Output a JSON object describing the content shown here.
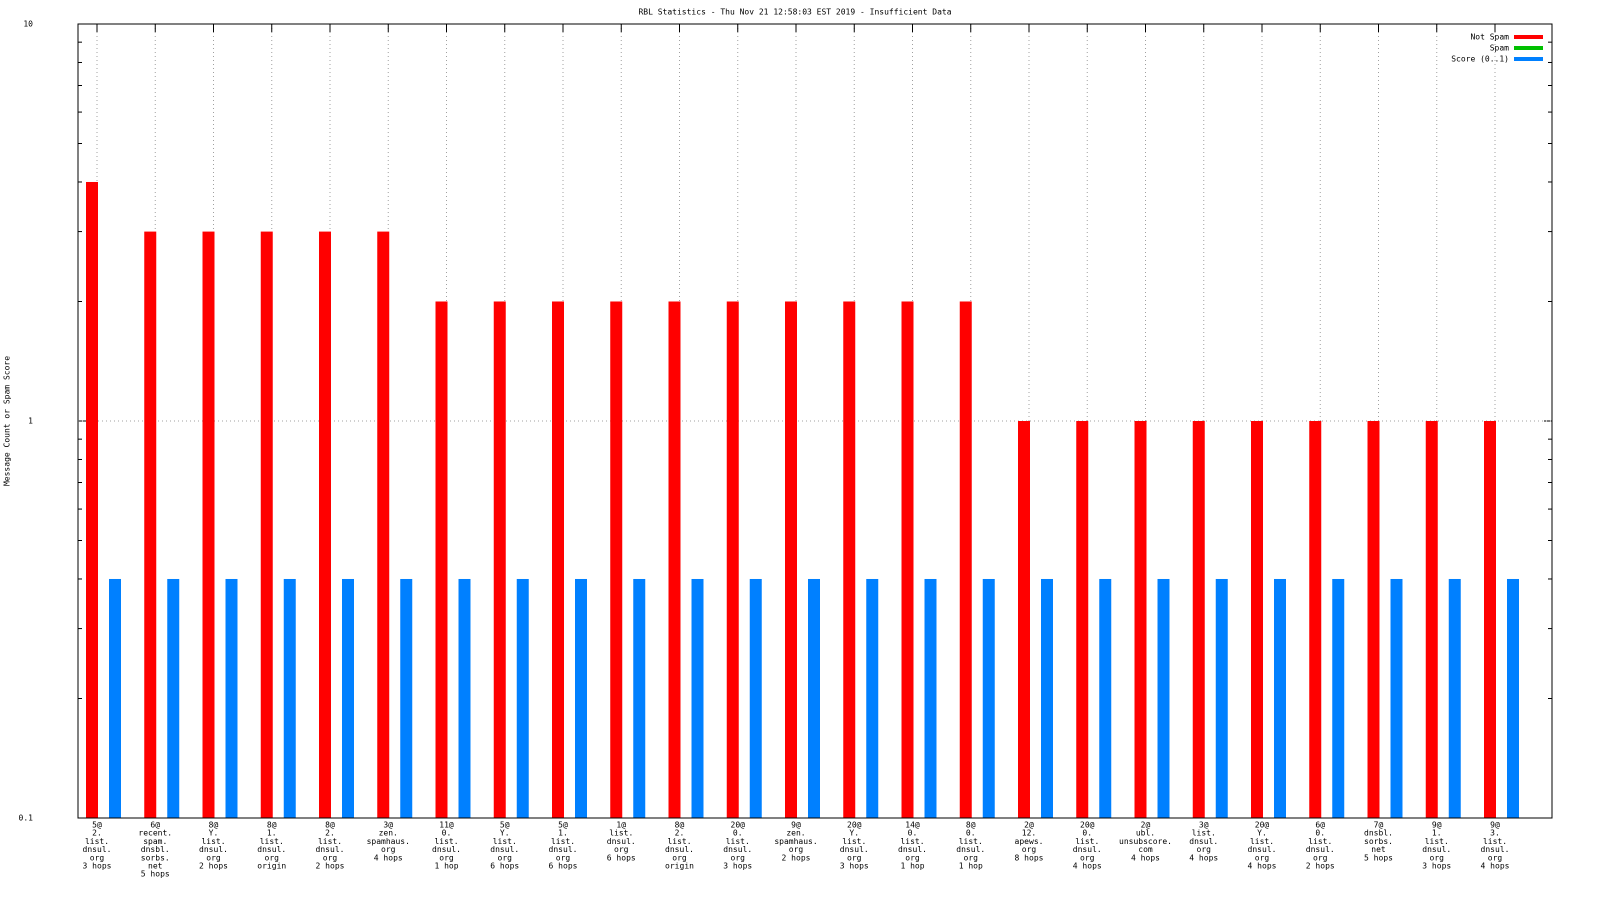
{
  "chart_data": {
    "type": "bar",
    "title": "RBL Statistics - Thu Nov 21 12:58:03 EST 2019 - Insufficient Data",
    "y_label": "Message Count or Spam Score",
    "log_y": true,
    "grid": true,
    "legend": "top-right",
    "ylim": [
      0.1,
      10
    ],
    "yticks": [
      0.1,
      1,
      10
    ],
    "categories": [
      [
        "5@",
        "2.",
        "list.",
        "dnsul.",
        "org",
        "3 hops"
      ],
      [
        "6@",
        "recent.",
        "spam.",
        "dnsbl.",
        "sorbs.",
        "net",
        "5 hops"
      ],
      [
        "8@",
        "Y.",
        "list.",
        "dnsul.",
        "org",
        "2 hops"
      ],
      [
        "8@",
        "1.",
        "list.",
        "dnsul.",
        "org",
        "origin"
      ],
      [
        "8@",
        "2.",
        "list.",
        "dnsul.",
        "org",
        "2 hops"
      ],
      [
        "3@",
        "zen.",
        "spamhaus.",
        "org",
        "4 hops"
      ],
      [
        "11@",
        "0.",
        "list.",
        "dnsul.",
        "org",
        "1 hop"
      ],
      [
        "5@",
        "Y.",
        "list.",
        "dnsul.",
        "org",
        "6 hops"
      ],
      [
        "5@",
        "1.",
        "list.",
        "dnsul.",
        "org",
        "6 hops"
      ],
      [
        "1@",
        "list.",
        "dnsul.",
        "org",
        "6 hops"
      ],
      [
        "8@",
        "2.",
        "list.",
        "dnsul.",
        "org",
        "origin"
      ],
      [
        "20@",
        "0.",
        "list.",
        "dnsul.",
        "org",
        "3 hops"
      ],
      [
        "9@",
        "zen.",
        "spamhaus.",
        "org",
        "2 hops"
      ],
      [
        "20@",
        "Y.",
        "list.",
        "dnsul.",
        "org",
        "3 hops"
      ],
      [
        "14@",
        "0.",
        "list.",
        "dnsul.",
        "org",
        "1 hop"
      ],
      [
        "8@",
        "0.",
        "list.",
        "dnsul.",
        "org",
        "1 hop"
      ],
      [
        "2@",
        "12.",
        "apews.",
        "org",
        "8 hops"
      ],
      [
        "20@",
        "0.",
        "list.",
        "dnsul.",
        "org",
        "4 hops"
      ],
      [
        "2@",
        "ubl.",
        "unsubscore.",
        "com",
        "4 hops"
      ],
      [
        "3@",
        "list.",
        "dnsul.",
        "org",
        "4 hops"
      ],
      [
        "20@",
        "Y.",
        "list.",
        "dnsul.",
        "org",
        "4 hops"
      ],
      [
        "6@",
        "0.",
        "list.",
        "dnsul.",
        "org",
        "2 hops"
      ],
      [
        "7@",
        "dnsbl.",
        "sorbs.",
        "net",
        "5 hops"
      ],
      [
        "9@",
        "1.",
        "list.",
        "dnsul.",
        "org",
        "3 hops"
      ],
      [
        "9@",
        "3.",
        "list.",
        "dnsul.",
        "org",
        "4 hops"
      ]
    ],
    "series": [
      {
        "name": "Not Spam",
        "color": "#ff0000",
        "values": [
          4,
          3,
          3,
          3,
          3,
          3,
          2,
          2,
          2,
          2,
          2,
          2,
          2,
          2,
          2,
          2,
          1,
          1,
          1,
          1,
          1,
          1,
          1,
          1,
          1
        ]
      },
      {
        "name": "Spam",
        "color": "#00c000",
        "values": [
          null,
          null,
          null,
          null,
          null,
          null,
          null,
          null,
          null,
          null,
          null,
          null,
          null,
          null,
          null,
          null,
          null,
          null,
          null,
          null,
          null,
          null,
          null,
          null,
          null
        ]
      },
      {
        "name": "Score (0..1)",
        "color": "#0080ff",
        "values": [
          0.4,
          0.4,
          0.4,
          0.4,
          0.4,
          0.4,
          0.4,
          0.4,
          0.4,
          0.4,
          0.4,
          0.4,
          0.4,
          0.4,
          0.4,
          0.4,
          0.4,
          0.4,
          0.4,
          0.4,
          0.4,
          0.4,
          0.4,
          0.4,
          0.4
        ]
      }
    ]
  }
}
